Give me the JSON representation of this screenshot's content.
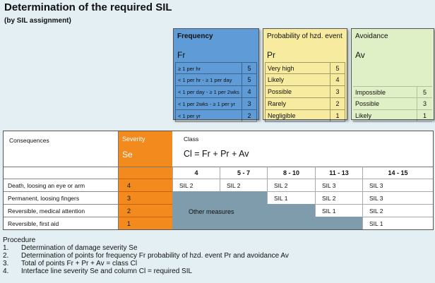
{
  "title": "Determination of the required SIL",
  "subtitle": "(by SIL assignment)",
  "colors": {
    "frequency": "#5f9bd6",
    "probability": "#f7eba0",
    "avoidance": "#dff0c6",
    "severity": "#f28a1e",
    "other_measures": "#7e9cac"
  },
  "frequency": {
    "header": "Frequency",
    "abbr": "Fr",
    "rows": [
      {
        "label": "≥ 1 per hr",
        "value": "5"
      },
      {
        "label": "< 1 per hr - ≥ 1 per day",
        "value": "5"
      },
      {
        "label": "< 1 per day - ≥ 1 per 2wks",
        "value": "4"
      },
      {
        "label": "< 1 per 2wks - ≥ 1 per yr",
        "value": "3"
      },
      {
        "label": "< 1 per yr",
        "value": "2"
      }
    ]
  },
  "probability": {
    "header": "Probability of hzd. event",
    "abbr": "Pr",
    "rows": [
      {
        "label": "Very high",
        "value": "5"
      },
      {
        "label": "Likely",
        "value": "4"
      },
      {
        "label": "Possible",
        "value": "3"
      },
      {
        "label": "Rarely",
        "value": "2"
      },
      {
        "label": "Negligible",
        "value": "1"
      }
    ]
  },
  "avoidance": {
    "header": "Avoidance",
    "abbr": "Av",
    "rows": [
      {
        "label": "Impossible",
        "value": "5"
      },
      {
        "label": "Possible",
        "value": "3"
      },
      {
        "label": "Likely",
        "value": "1"
      }
    ]
  },
  "grid": {
    "consequences_header": "Consequences",
    "severity_header": "Severity",
    "severity_abbr": "Se",
    "class_header": "Class",
    "class_formula": "Cl = Fr + Pr + Av",
    "class_columns": [
      "4",
      "5 - 7",
      "8 - 10",
      "11 - 13",
      "14 - 15"
    ],
    "rows": [
      {
        "consequence": "Death, loosing an eye or arm",
        "severity": "4",
        "sil": [
          "SIL 2",
          "SIL 2",
          "SIL 2",
          "SIL 3",
          "SIL 3"
        ]
      },
      {
        "consequence": "Permanent, loosing fingers",
        "severity": "3",
        "sil": [
          "",
          "",
          "SIL 1",
          "SIL 2",
          "SIL 3"
        ]
      },
      {
        "consequence": "Reversible, medical attention",
        "severity": "2",
        "sil": [
          "",
          "",
          "",
          "SIL 1",
          "SIL 2"
        ]
      },
      {
        "consequence": "Reversible, first aid",
        "severity": "1",
        "sil": [
          "",
          "",
          "",
          "",
          "SIL 1"
        ]
      }
    ],
    "other_measures": "Other measures"
  },
  "procedure": {
    "header": "Procedure",
    "steps": [
      {
        "n": "1.",
        "text": "Determination of damage severity Se"
      },
      {
        "n": "2.",
        "text": "Determination of points for frequency Fr probability of hzd. event Pr and avoidance Av"
      },
      {
        "n": "3.",
        "text": "Total of points Fr + Pr + Av = class Cl"
      },
      {
        "n": "4.",
        "text": "Interface line severity Se and column Cl = required SIL"
      }
    ]
  }
}
